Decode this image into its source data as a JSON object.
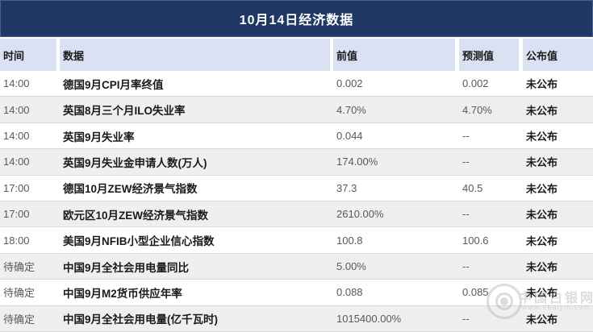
{
  "title": "10月14日经济数据",
  "columns": {
    "time": "时间",
    "indicator": "数据",
    "previous": "前值",
    "forecast": "预测值",
    "published": "公布值"
  },
  "rows": [
    {
      "time": "14:00",
      "name": "德国9月CPI月率终值",
      "prev": "0.002",
      "forecast": "0.002",
      "published": "未公布"
    },
    {
      "time": "14:00",
      "name": "英国8月三个月ILO失业率",
      "prev": "4.70%",
      "forecast": "4.70%",
      "published": "未公布"
    },
    {
      "time": "14:00",
      "name": "英国9月失业率",
      "prev": "0.044",
      "forecast": "--",
      "published": "未公布"
    },
    {
      "time": "14:00",
      "name": "英国9月失业金申请人数(万人)",
      "prev": "174.00%",
      "forecast": "--",
      "published": "未公布"
    },
    {
      "time": "17:00",
      "name": "德国10月ZEW经济景气指数",
      "prev": "37.3",
      "forecast": "40.5",
      "published": "未公布"
    },
    {
      "time": "17:00",
      "name": "欧元区10月ZEW经济景气指数",
      "prev": "2610.00%",
      "forecast": "--",
      "published": "未公布"
    },
    {
      "time": "18:00",
      "name": "美国9月NFIB小型企业信心指数",
      "prev": "100.8",
      "forecast": "100.6",
      "published": "未公布"
    },
    {
      "time": "待确定",
      "name": "中国9月全社会用电量同比",
      "prev": "5.00%",
      "forecast": "--",
      "published": "未公布"
    },
    {
      "time": "待确定",
      "name": "中国9月M2货币供应年率",
      "prev": "0.088",
      "forecast": "0.085",
      "published": "未公布"
    },
    {
      "time": "待确定",
      "name": "中国9月全社会用电量(亿千瓦时)",
      "prev": "1015400.00%",
      "forecast": "--",
      "published": "未公布"
    }
  ],
  "watermark": {
    "site_name": "中国白银网",
    "site_url": "www.ebaiyin.com"
  },
  "colors": {
    "title_bg": "#1F3864",
    "header_bg": "#D9E1F2",
    "row_alt_bg": "#EFEFEF",
    "row_border": "#D9D9D9",
    "text_dark": "#1A1A1A",
    "text_gray": "#595959",
    "watermark_gray": "#A9AFBA"
  }
}
